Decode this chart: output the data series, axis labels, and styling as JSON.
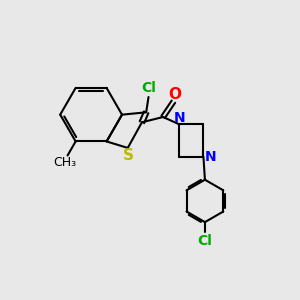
{
  "bg_color": "#e8e8e8",
  "bond_color": "#000000",
  "bond_width": 1.5,
  "atom_colors": {
    "Cl": "#00aa00",
    "O": "#ff0000",
    "N": "#0000ff",
    "S": "#bbbb00",
    "C_methyl": "#000000"
  },
  "font_size_atom": 10,
  "font_size_methyl": 9
}
